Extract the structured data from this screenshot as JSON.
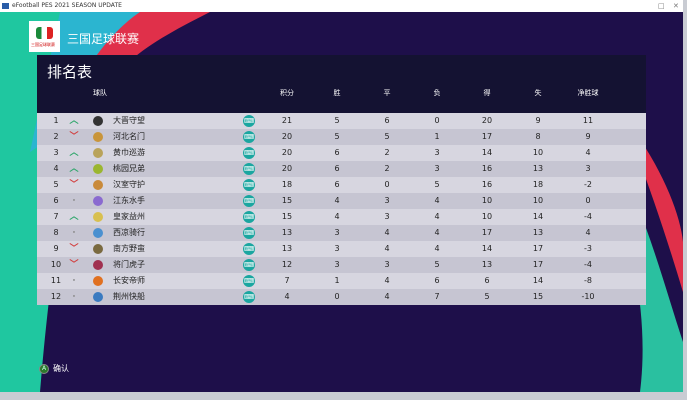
{
  "window": {
    "title": "eFootball PES 2021 SEASON UPDATE"
  },
  "header": {
    "league_name": "三国足球联赛",
    "page_title": "排名表"
  },
  "columns": [
    "球队",
    "积分",
    "胜",
    "平",
    "负",
    "得",
    "失",
    "净胜球"
  ],
  "colors": {
    "up": "#2ea66a",
    "down": "#d23c3c",
    "controller": "#1aa6a0",
    "background": "#1e0f4a"
  },
  "rows": [
    {
      "rank": "1",
      "trend": "up",
      "team": "大晋守望",
      "pts": "21",
      "w": "5",
      "d": "6",
      "l": "0",
      "gf": "20",
      "ga": "9",
      "gd": "11",
      "badge": "#333"
    },
    {
      "rank": "2",
      "trend": "down",
      "team": "河北名门",
      "pts": "20",
      "w": "5",
      "d": "5",
      "l": "1",
      "gf": "17",
      "ga": "8",
      "gd": "9",
      "badge": "#c9953a"
    },
    {
      "rank": "3",
      "trend": "up",
      "team": "黄巾巡游",
      "pts": "20",
      "w": "6",
      "d": "2",
      "l": "3",
      "gf": "14",
      "ga": "10",
      "gd": "4",
      "badge": "#b9a35a"
    },
    {
      "rank": "4",
      "trend": "up",
      "team": "桃园兄弟",
      "pts": "20",
      "w": "6",
      "d": "2",
      "l": "3",
      "gf": "16",
      "ga": "13",
      "gd": "3",
      "badge": "#9bb630"
    },
    {
      "rank": "5",
      "trend": "down",
      "team": "汉室守护",
      "pts": "18",
      "w": "6",
      "d": "0",
      "l": "5",
      "gf": "16",
      "ga": "18",
      "gd": "-2",
      "badge": "#c98a3a"
    },
    {
      "rank": "6",
      "trend": "same",
      "team": "江东水手",
      "pts": "15",
      "w": "4",
      "d": "3",
      "l": "4",
      "gf": "10",
      "ga": "10",
      "gd": "0",
      "badge": "#8a6ad0"
    },
    {
      "rank": "7",
      "trend": "up",
      "team": "皇家益州",
      "pts": "15",
      "w": "4",
      "d": "3",
      "l": "4",
      "gf": "10",
      "ga": "14",
      "gd": "-4",
      "badge": "#d8c050"
    },
    {
      "rank": "8",
      "trend": "same",
      "team": "西凉骑行",
      "pts": "13",
      "w": "3",
      "d": "4",
      "l": "4",
      "gf": "17",
      "ga": "13",
      "gd": "4",
      "badge": "#4a90d0"
    },
    {
      "rank": "9",
      "trend": "down",
      "team": "南方野蛮",
      "pts": "13",
      "w": "3",
      "d": "4",
      "l": "4",
      "gf": "14",
      "ga": "17",
      "gd": "-3",
      "badge": "#7a6a40"
    },
    {
      "rank": "10",
      "trend": "down",
      "team": "将门虎子",
      "pts": "12",
      "w": "3",
      "d": "3",
      "l": "5",
      "gf": "13",
      "ga": "17",
      "gd": "-4",
      "badge": "#a03050"
    },
    {
      "rank": "11",
      "trend": "same",
      "team": "长安帝师",
      "pts": "7",
      "w": "1",
      "d": "4",
      "l": "6",
      "gf": "6",
      "ga": "14",
      "gd": "-8",
      "badge": "#e07020"
    },
    {
      "rank": "12",
      "trend": "same",
      "team": "荆州快船",
      "pts": "4",
      "w": "0",
      "d": "4",
      "l": "7",
      "gf": "5",
      "ga": "15",
      "gd": "-10",
      "badge": "#3a7ac0"
    }
  ],
  "footer": {
    "confirm_key": "A",
    "confirm_label": "确认"
  }
}
